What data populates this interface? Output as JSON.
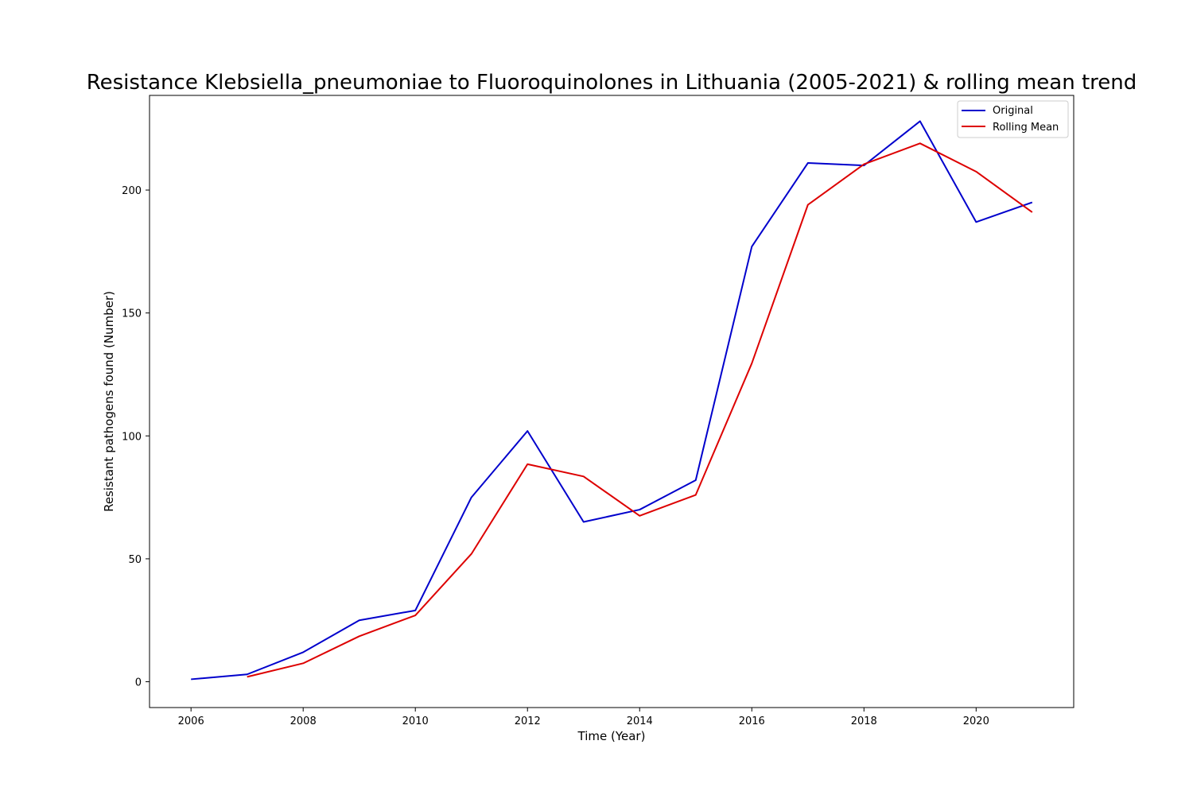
{
  "chart_data": {
    "type": "line",
    "title": "Resistance Klebsiella_pneumoniae to Fluoroquinolones in Lithuania (2005-2021) & rolling mean trend",
    "xlabel": "Time (Year)",
    "ylabel": "Resistant pathogens found (Number)",
    "xlim": [
      2005.26,
      2021.74
    ],
    "ylim": [
      -10.5,
      238.5
    ],
    "x_ticks": [
      2006,
      2008,
      2010,
      2012,
      2014,
      2016,
      2018,
      2020
    ],
    "y_ticks": [
      0,
      50,
      100,
      150,
      200
    ],
    "grid": false,
    "legend": {
      "placement": "top-right",
      "entries": [
        "Original",
        "Rolling Mean"
      ]
    },
    "series": [
      {
        "name": "Original",
        "color": "#0000cc",
        "x": [
          2006,
          2007,
          2008,
          2009,
          2010,
          2011,
          2012,
          2013,
          2014,
          2015,
          2016,
          2017,
          2018,
          2019,
          2020,
          2021
        ],
        "values": [
          1,
          3,
          12,
          25,
          29,
          75,
          102,
          65,
          70,
          82,
          177,
          211,
          210,
          228,
          187,
          195
        ]
      },
      {
        "name": "Rolling Mean",
        "color": "#dd0000",
        "x": [
          2007,
          2008,
          2009,
          2010,
          2011,
          2012,
          2013,
          2014,
          2015,
          2016,
          2017,
          2018,
          2019,
          2020,
          2021
        ],
        "values": [
          2,
          7.5,
          18.5,
          27,
          52,
          88.5,
          83.5,
          67.5,
          76,
          129.5,
          194,
          210.5,
          219,
          207.5,
          191
        ]
      }
    ]
  }
}
